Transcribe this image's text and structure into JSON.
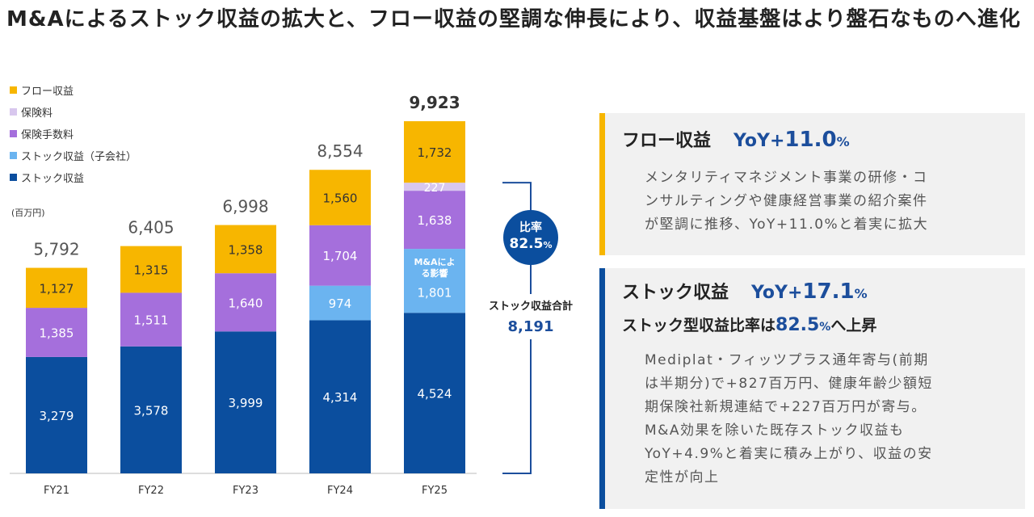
{
  "title": "M&Aによるストック収益の拡大と、フロー収益の堅調な伸長により、収益基盤はより盤石なものへ進化",
  "colors": {
    "flow": "#f7b600",
    "insurance_fee": "#d8c7ee",
    "insurance_commission": "#a56fdc",
    "stock_subsidiary": "#6bb4f0",
    "stock": "#0b4e9e",
    "accent": "#1c4e9c",
    "flow_panel_bar": "#f7b600",
    "stock_panel_bar": "#0b4e9e"
  },
  "legend": [
    {
      "label": "フロー収益",
      "color": "#f7b600"
    },
    {
      "label": "保険料",
      "color": "#d8c7ee"
    },
    {
      "label": "保険手数料",
      "color": "#a56fdc"
    },
    {
      "label": "ストック収益（子会社）",
      "color": "#6bb4f0"
    },
    {
      "label": "ストック収益",
      "color": "#0b4e9e"
    }
  ],
  "unit_label": "(百万円)",
  "chart_data": {
    "type": "bar",
    "stacked": true,
    "categories": [
      "FY21",
      "FY22",
      "FY23",
      "FY24",
      "FY25"
    ],
    "series": [
      {
        "name": "ストック収益",
        "values": [
          3279,
          3578,
          3999,
          4314,
          4524
        ]
      },
      {
        "name": "ストック収益（子会社）",
        "values": [
          0,
          0,
          0,
          974,
          1801
        ]
      },
      {
        "name": "保険手数料",
        "values": [
          1385,
          1511,
          1640,
          1704,
          1638
        ]
      },
      {
        "name": "保険料",
        "values": [
          0,
          0,
          0,
          0,
          227
        ]
      },
      {
        "name": "フロー収益",
        "values": [
          1127,
          1315,
          1358,
          1560,
          1732
        ]
      }
    ],
    "labels": [
      [
        "3,279",
        "3,578",
        "3,999",
        "4,314",
        "4,524"
      ],
      [
        "",
        "",
        "",
        "974",
        "1,801"
      ],
      [
        "1,385",
        "1,511",
        "1,640",
        "1,704",
        "1,638"
      ],
      [
        "",
        "",
        "",
        "",
        "227"
      ],
      [
        "1,127",
        "1,315",
        "1,358",
        "1,560",
        "1,732"
      ]
    ],
    "totals": [
      5792,
      6405,
      6998,
      8554,
      9923
    ],
    "total_labels": [
      "5,792",
      "6,405",
      "6,998",
      "8,554",
      "9,923"
    ],
    "ylim": [
      0,
      10000
    ],
    "annotations": {
      "ma_impact": "M&Aによる影響",
      "ratio_title": "比率",
      "ratio_value": "82.5",
      "ratio_unit": "%",
      "stock_total_label": "ストック収益合計",
      "stock_total_value": "8,191"
    }
  },
  "flow_panel": {
    "heading": "フロー収益",
    "yoy_prefix": "YoY+",
    "yoy_value": "11.0",
    "yoy_unit": "%",
    "body_lines": [
      "メンタリティマネジメント事業の研修・コ",
      "ンサルティングや健康経営事業の紹介案件",
      "が堅調に推移、YoY+11.0%と着実に拡大"
    ]
  },
  "stock_panel": {
    "heading": "ストック収益",
    "yoy_prefix": "YoY+",
    "yoy_value": "17.1",
    "yoy_unit": "%",
    "sub_pre": "ストック型収益比率は",
    "sub_value": "82.5",
    "sub_unit": "%",
    "sub_post": "へ上昇",
    "body_lines": [
      "Mediplat・フィッツプラス通年寄与(前期",
      "は半期分)で+827百万円、健康年齢少額短",
      "期保険社新規連結で+227百万円が寄与。",
      "M&A効果を除いた既存ストック収益も",
      "YoY+4.9%と着実に積み上がり、収益の安",
      "定性が向上"
    ]
  }
}
